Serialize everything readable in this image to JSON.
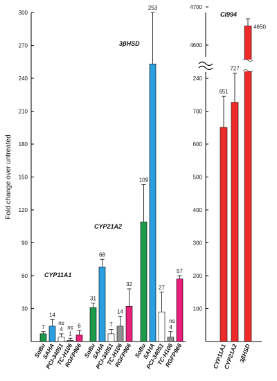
{
  "chart_data": [
    {
      "type": "bar",
      "ylabel": "Fold change over untreated",
      "ylim": [
        0,
        300
      ],
      "yticks": [
        30,
        60,
        90,
        120,
        150,
        180,
        210,
        240,
        270,
        300
      ],
      "groups": [
        {
          "name": "CYP11A1",
          "categories": [
            "SoBu",
            "SAHA",
            "PCI-34051",
            "TC-H106",
            "RGFP966"
          ],
          "values": [
            7,
            14,
            4,
            1,
            6
          ],
          "errors": [
            2,
            6,
            3,
            2,
            4
          ],
          "labels": [
            "7",
            "14",
            "4",
            "1",
            "6"
          ],
          "annotations": [
            "",
            "",
            "ns",
            "ns",
            ""
          ]
        },
        {
          "name": "CYP21A2",
          "categories": [
            "SoBu",
            "SAHA",
            "PCI-34051",
            "TC-H106",
            "RGFP966"
          ],
          "values": [
            31,
            68,
            7,
            14,
            32
          ],
          "errors": [
            4,
            7,
            4,
            9,
            16
          ],
          "labels": [
            "31",
            "68",
            "7",
            "14",
            "32"
          ],
          "annotations": [
            "",
            "",
            "",
            "",
            ""
          ]
        },
        {
          "name": "3βHSD",
          "categories": [
            "SoBu",
            "SAHA",
            "PCI-34051",
            "TC-H106",
            "RGFP966"
          ],
          "values": [
            109,
            253,
            27,
            4,
            57
          ],
          "errors": [
            34,
            47,
            18,
            5,
            3
          ],
          "labels": [
            "109",
            "253",
            "27",
            "4",
            "57"
          ],
          "annotations": [
            "",
            "",
            "",
            "ns",
            ""
          ]
        }
      ],
      "colors": {
        "SoBu": "#1e9a4c",
        "SAHA": "#2aa0e0",
        "PCI-34051": "#ffffff",
        "TC-H106": "#909090",
        "RGFP966": "#e8207a"
      }
    },
    {
      "type": "bar",
      "title": "CI994",
      "broken_axis": true,
      "lower_ylim": [
        0,
        800
      ],
      "lower_yticks": [
        100,
        200,
        300,
        400,
        500,
        600,
        700
      ],
      "lower_extra_tick": 240,
      "upper_yticks": [
        4600,
        4700
      ],
      "categories": [
        "CYP11A1",
        "CYP21A2",
        "3βHSD"
      ],
      "values": [
        651,
        727,
        4650
      ],
      "errors": [
        94,
        89,
        19
      ],
      "labels": [
        "651",
        "727",
        "4650"
      ],
      "color": "#ee2b2b"
    }
  ]
}
